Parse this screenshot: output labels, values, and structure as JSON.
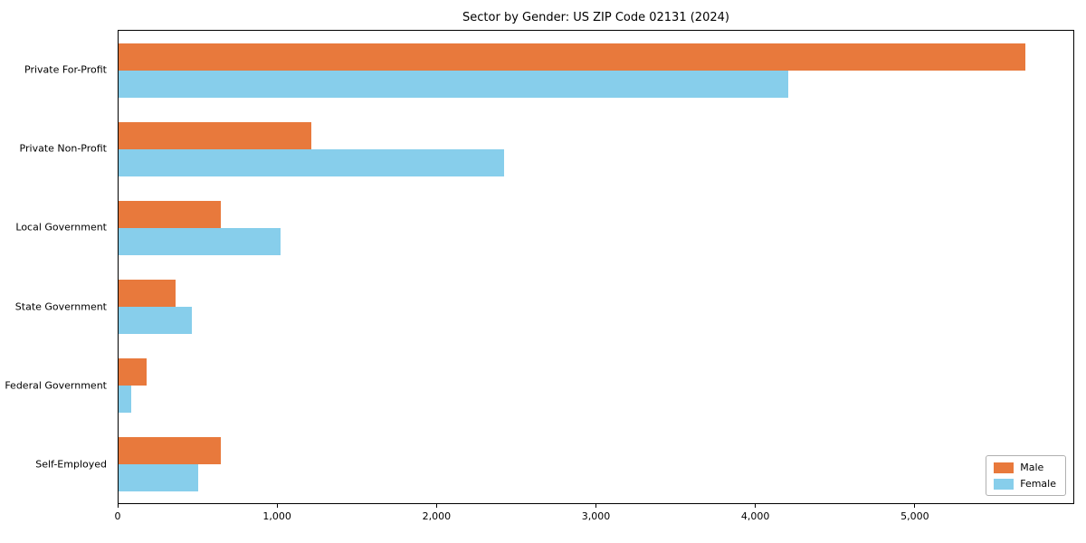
{
  "chart_data": {
    "type": "bar",
    "orientation": "horizontal",
    "title": "Sector by Gender: US ZIP Code 02131 (2024)",
    "categories": [
      "Private For-Profit",
      "Private Non-Profit",
      "Local Government",
      "State Government",
      "Federal Government",
      "Self-Employed"
    ],
    "series": [
      {
        "name": "Male",
        "color": "#E8793C",
        "values": [
          5700,
          1210,
          640,
          360,
          175,
          640
        ]
      },
      {
        "name": "Female",
        "color": "#87CEEB",
        "values": [
          4210,
          2420,
          1020,
          460,
          80,
          500
        ]
      }
    ],
    "xlabel": "",
    "ylabel": "",
    "xlim": [
      0,
      6000
    ],
    "xticks": [
      0,
      1000,
      2000,
      3000,
      4000,
      5000
    ],
    "xtick_labels": [
      "0",
      "1,000",
      "2,000",
      "3,000",
      "4,000",
      "5,000"
    ],
    "grid": false,
    "legend_position": "lower right"
  }
}
